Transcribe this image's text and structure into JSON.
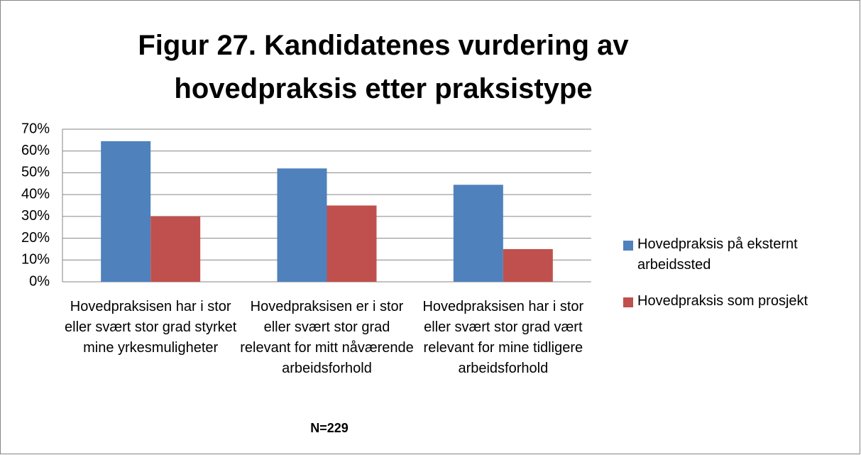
{
  "chart_data": {
    "type": "bar",
    "title": "Figur 27. Kandidatenes vurdering av hovedpraksis etter praksistype",
    "annotation": "N=229",
    "categories": [
      "Hovedpraksisen har i stor eller svært stor grad styrket mine yrkesmuligheter",
      "Hovedpraksisen er i stor eller svært stor grad relevant for mitt nåværende arbeidsforhold",
      "Hovedpraksisen har i stor eller svært stor grad vært relevant for mine tidligere arbeidsforhold"
    ],
    "series": [
      {
        "name": "Hovedpraksis på eksternt arbeidssted",
        "color": "#4f81bd",
        "values": [
          64.5,
          52,
          44.5
        ]
      },
      {
        "name": "Hovedpraksis som prosjekt",
        "color": "#c0504d",
        "values": [
          30,
          35,
          15
        ]
      }
    ],
    "ylim": [
      0,
      70
    ],
    "yticks": [
      {
        "value": 0,
        "label": "0%"
      },
      {
        "value": 10,
        "label": "10%"
      },
      {
        "value": 20,
        "label": "20%"
      },
      {
        "value": 30,
        "label": "30%"
      },
      {
        "value": 40,
        "label": "40%"
      },
      {
        "value": 50,
        "label": "50%"
      },
      {
        "value": 60,
        "label": "60%"
      },
      {
        "value": 70,
        "label": "70%"
      }
    ],
    "grid": true,
    "legend": "right"
  }
}
